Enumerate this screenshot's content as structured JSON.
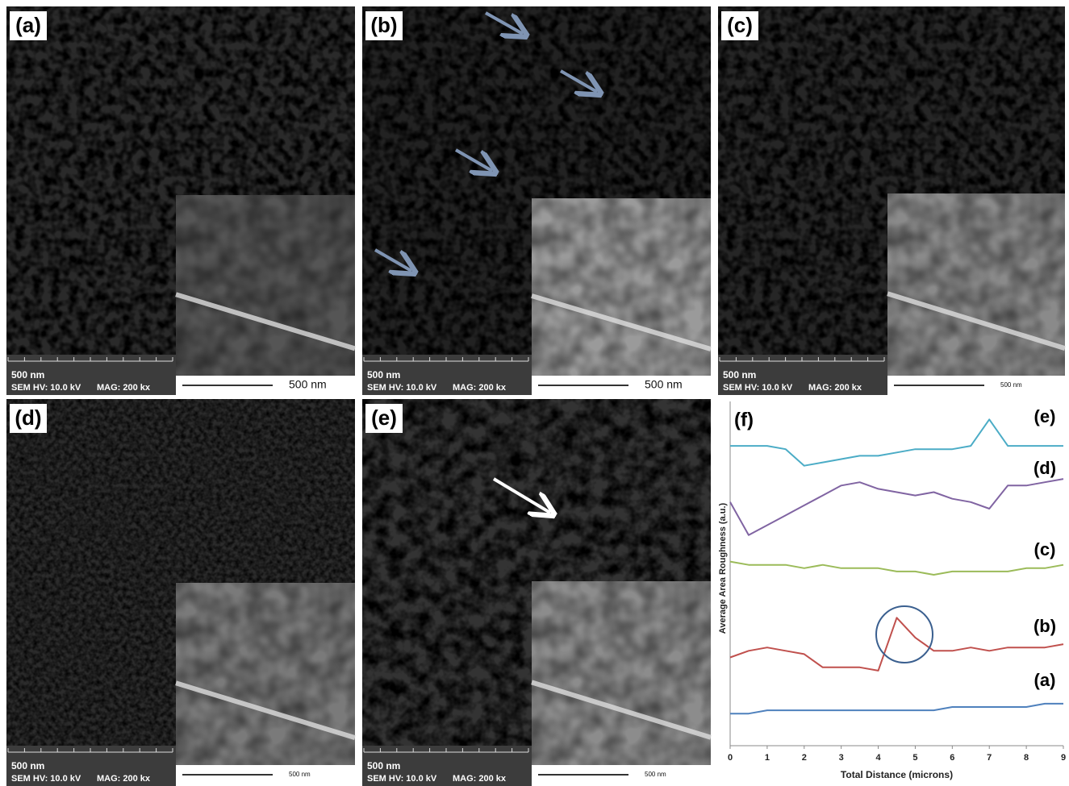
{
  "panels": [
    {
      "label": "(a)",
      "scale_bar": "500 nm",
      "voltage": "SEM HV: 10.0 kV",
      "magnification": "MAG: 200 kx",
      "inset_scale": "500 nm"
    },
    {
      "label": "(b)",
      "scale_bar": "500 nm",
      "voltage": "SEM HV: 10.0 kV",
      "magnification": "MAG: 200 kx",
      "inset_scale": "500 nm"
    },
    {
      "label": "(c)",
      "scale_bar": "500 nm",
      "voltage": "SEM HV: 10.0 kV",
      "magnification": "MAG: 200 kx",
      "inset_scale": "500 nm"
    },
    {
      "label": "(d)",
      "scale_bar": "500 nm",
      "voltage": "SEM HV: 10.0 kV",
      "magnification": "MAG: 200 kx",
      "inset_scale": "500 nm"
    },
    {
      "label": "(e)",
      "scale_bar": "500 nm",
      "voltage": "SEM HV: 10.0 kV",
      "magnification": "MAG: 200 kx",
      "inset_scale": "500 nm"
    }
  ],
  "chart_data": {
    "type": "line",
    "panel_label": "(f)",
    "x_label": "Total Distance (microns)",
    "y_label": "Average Area Roughness (a.u.)",
    "x": [
      0,
      0.5,
      1,
      1.5,
      2,
      2.5,
      3,
      3.5,
      4,
      4.5,
      5,
      5.5,
      6,
      6.5,
      7,
      7.5,
      8,
      8.5,
      9
    ],
    "xlim": [
      0,
      9
    ],
    "xticks": [
      0,
      1,
      2,
      3,
      4,
      5,
      6,
      7,
      8,
      9
    ],
    "ylim": [
      0,
      100
    ],
    "series": [
      {
        "name": "(e)",
        "color": "#4bacc6",
        "values": [
          89,
          89,
          89,
          88,
          83,
          84,
          85,
          86,
          86,
          87,
          88,
          88,
          88,
          89,
          97,
          89,
          89,
          89,
          89
        ]
      },
      {
        "name": "(d)",
        "color": "#8064a2",
        "values": [
          72,
          62,
          65,
          68,
          71,
          74,
          77,
          78,
          76,
          75,
          74,
          75,
          73,
          72,
          70,
          77,
          77,
          78,
          79
        ]
      },
      {
        "name": "(c)",
        "color": "#9bbb59",
        "values": [
          54,
          53,
          53,
          53,
          52,
          53,
          52,
          52,
          52,
          51,
          51,
          50,
          51,
          51,
          51,
          51,
          52,
          52,
          53
        ]
      },
      {
        "name": "(b)",
        "color": "#c0504d",
        "values": [
          25,
          27,
          28,
          27,
          26,
          22,
          22,
          22,
          21,
          37,
          31,
          27,
          27,
          28,
          27,
          28,
          28,
          28,
          29
        ]
      },
      {
        "name": "(a)",
        "color": "#4f81bd",
        "values": [
          8,
          8,
          9,
          9,
          9,
          9,
          9,
          9,
          9,
          9,
          9,
          9,
          10,
          10,
          10,
          10,
          10,
          11,
          11
        ]
      }
    ]
  }
}
